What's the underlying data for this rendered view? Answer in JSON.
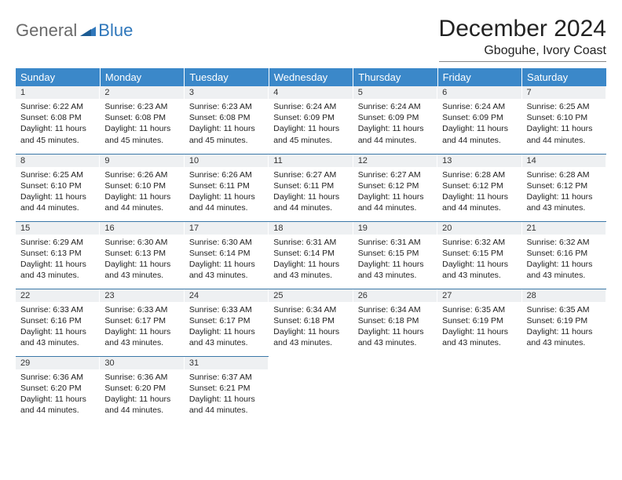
{
  "brand": {
    "part1": "General",
    "part2": "Blue",
    "accent_color": "#2f77bb",
    "gray": "#6a6a6a"
  },
  "title": "December 2024",
  "location": "Gboguhe, Ivory Coast",
  "header_bg": "#3b88c9",
  "row_divider": "#3b78a8",
  "daynum_bg": "#eef0f2",
  "background": "#ffffff",
  "days_of_week": [
    "Sunday",
    "Monday",
    "Tuesday",
    "Wednesday",
    "Thursday",
    "Friday",
    "Saturday"
  ],
  "weeks": [
    [
      {
        "num": "1",
        "sunrise": "Sunrise: 6:22 AM",
        "sunset": "Sunset: 6:08 PM",
        "daylight": "Daylight: 11 hours and 45 minutes."
      },
      {
        "num": "2",
        "sunrise": "Sunrise: 6:23 AM",
        "sunset": "Sunset: 6:08 PM",
        "daylight": "Daylight: 11 hours and 45 minutes."
      },
      {
        "num": "3",
        "sunrise": "Sunrise: 6:23 AM",
        "sunset": "Sunset: 6:08 PM",
        "daylight": "Daylight: 11 hours and 45 minutes."
      },
      {
        "num": "4",
        "sunrise": "Sunrise: 6:24 AM",
        "sunset": "Sunset: 6:09 PM",
        "daylight": "Daylight: 11 hours and 45 minutes."
      },
      {
        "num": "5",
        "sunrise": "Sunrise: 6:24 AM",
        "sunset": "Sunset: 6:09 PM",
        "daylight": "Daylight: 11 hours and 44 minutes."
      },
      {
        "num": "6",
        "sunrise": "Sunrise: 6:24 AM",
        "sunset": "Sunset: 6:09 PM",
        "daylight": "Daylight: 11 hours and 44 minutes."
      },
      {
        "num": "7",
        "sunrise": "Sunrise: 6:25 AM",
        "sunset": "Sunset: 6:10 PM",
        "daylight": "Daylight: 11 hours and 44 minutes."
      }
    ],
    [
      {
        "num": "8",
        "sunrise": "Sunrise: 6:25 AM",
        "sunset": "Sunset: 6:10 PM",
        "daylight": "Daylight: 11 hours and 44 minutes."
      },
      {
        "num": "9",
        "sunrise": "Sunrise: 6:26 AM",
        "sunset": "Sunset: 6:10 PM",
        "daylight": "Daylight: 11 hours and 44 minutes."
      },
      {
        "num": "10",
        "sunrise": "Sunrise: 6:26 AM",
        "sunset": "Sunset: 6:11 PM",
        "daylight": "Daylight: 11 hours and 44 minutes."
      },
      {
        "num": "11",
        "sunrise": "Sunrise: 6:27 AM",
        "sunset": "Sunset: 6:11 PM",
        "daylight": "Daylight: 11 hours and 44 minutes."
      },
      {
        "num": "12",
        "sunrise": "Sunrise: 6:27 AM",
        "sunset": "Sunset: 6:12 PM",
        "daylight": "Daylight: 11 hours and 44 minutes."
      },
      {
        "num": "13",
        "sunrise": "Sunrise: 6:28 AM",
        "sunset": "Sunset: 6:12 PM",
        "daylight": "Daylight: 11 hours and 44 minutes."
      },
      {
        "num": "14",
        "sunrise": "Sunrise: 6:28 AM",
        "sunset": "Sunset: 6:12 PM",
        "daylight": "Daylight: 11 hours and 43 minutes."
      }
    ],
    [
      {
        "num": "15",
        "sunrise": "Sunrise: 6:29 AM",
        "sunset": "Sunset: 6:13 PM",
        "daylight": "Daylight: 11 hours and 43 minutes."
      },
      {
        "num": "16",
        "sunrise": "Sunrise: 6:30 AM",
        "sunset": "Sunset: 6:13 PM",
        "daylight": "Daylight: 11 hours and 43 minutes."
      },
      {
        "num": "17",
        "sunrise": "Sunrise: 6:30 AM",
        "sunset": "Sunset: 6:14 PM",
        "daylight": "Daylight: 11 hours and 43 minutes."
      },
      {
        "num": "18",
        "sunrise": "Sunrise: 6:31 AM",
        "sunset": "Sunset: 6:14 PM",
        "daylight": "Daylight: 11 hours and 43 minutes."
      },
      {
        "num": "19",
        "sunrise": "Sunrise: 6:31 AM",
        "sunset": "Sunset: 6:15 PM",
        "daylight": "Daylight: 11 hours and 43 minutes."
      },
      {
        "num": "20",
        "sunrise": "Sunrise: 6:32 AM",
        "sunset": "Sunset: 6:15 PM",
        "daylight": "Daylight: 11 hours and 43 minutes."
      },
      {
        "num": "21",
        "sunrise": "Sunrise: 6:32 AM",
        "sunset": "Sunset: 6:16 PM",
        "daylight": "Daylight: 11 hours and 43 minutes."
      }
    ],
    [
      {
        "num": "22",
        "sunrise": "Sunrise: 6:33 AM",
        "sunset": "Sunset: 6:16 PM",
        "daylight": "Daylight: 11 hours and 43 minutes."
      },
      {
        "num": "23",
        "sunrise": "Sunrise: 6:33 AM",
        "sunset": "Sunset: 6:17 PM",
        "daylight": "Daylight: 11 hours and 43 minutes."
      },
      {
        "num": "24",
        "sunrise": "Sunrise: 6:33 AM",
        "sunset": "Sunset: 6:17 PM",
        "daylight": "Daylight: 11 hours and 43 minutes."
      },
      {
        "num": "25",
        "sunrise": "Sunrise: 6:34 AM",
        "sunset": "Sunset: 6:18 PM",
        "daylight": "Daylight: 11 hours and 43 minutes."
      },
      {
        "num": "26",
        "sunrise": "Sunrise: 6:34 AM",
        "sunset": "Sunset: 6:18 PM",
        "daylight": "Daylight: 11 hours and 43 minutes."
      },
      {
        "num": "27",
        "sunrise": "Sunrise: 6:35 AM",
        "sunset": "Sunset: 6:19 PM",
        "daylight": "Daylight: 11 hours and 43 minutes."
      },
      {
        "num": "28",
        "sunrise": "Sunrise: 6:35 AM",
        "sunset": "Sunset: 6:19 PM",
        "daylight": "Daylight: 11 hours and 43 minutes."
      }
    ],
    [
      {
        "num": "29",
        "sunrise": "Sunrise: 6:36 AM",
        "sunset": "Sunset: 6:20 PM",
        "daylight": "Daylight: 11 hours and 44 minutes."
      },
      {
        "num": "30",
        "sunrise": "Sunrise: 6:36 AM",
        "sunset": "Sunset: 6:20 PM",
        "daylight": "Daylight: 11 hours and 44 minutes."
      },
      {
        "num": "31",
        "sunrise": "Sunrise: 6:37 AM",
        "sunset": "Sunset: 6:21 PM",
        "daylight": "Daylight: 11 hours and 44 minutes."
      },
      null,
      null,
      null,
      null
    ]
  ]
}
